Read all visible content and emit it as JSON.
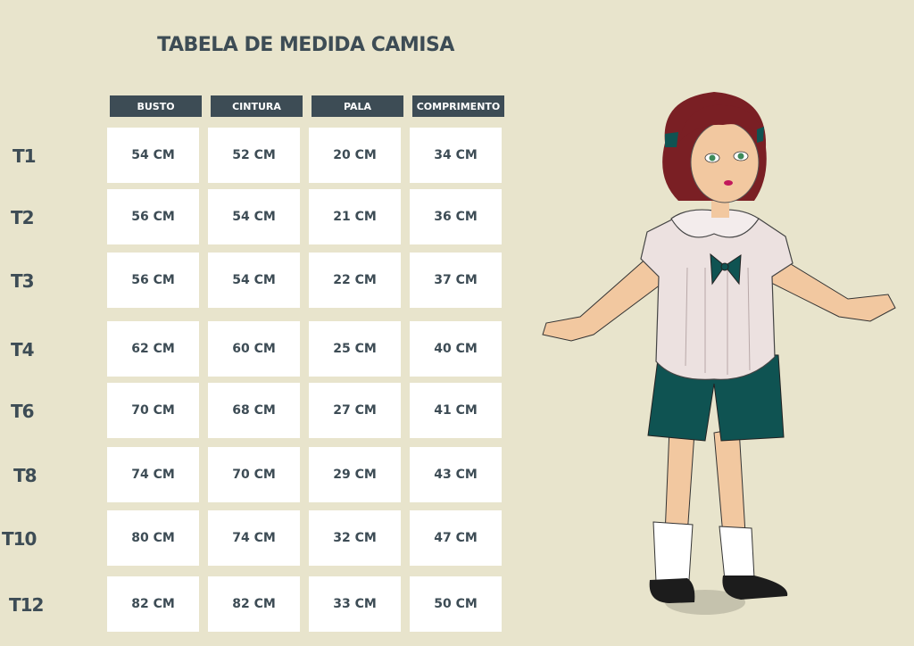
{
  "title": "TABELA DE MEDIDA CAMISA",
  "columns": [
    "BUSTO",
    "CINTURA",
    "PALA",
    "COMPRIMENTO"
  ],
  "rows": [
    {
      "size": "T1",
      "values": [
        "54 CM",
        "52 CM",
        "20 CM",
        "34  CM"
      ]
    },
    {
      "size": "T2",
      "values": [
        "56 CM",
        "54 CM",
        "21 CM",
        "36 CM"
      ]
    },
    {
      "size": "T3",
      "values": [
        "56 CM",
        "54 CM",
        "22 CM",
        "37 CM"
      ]
    },
    {
      "size": "T4",
      "values": [
        "62 CM",
        "60 CM",
        "25 CM",
        "40 CM"
      ]
    },
    {
      "size": "T6",
      "values": [
        "70 CM",
        "68 CM",
        "27 CM",
        "41 CM"
      ]
    },
    {
      "size": "T8",
      "values": [
        "74 CM",
        "70 CM",
        "29 CM",
        "43 CM"
      ]
    },
    {
      "size": "T10",
      "values": [
        "80 CM",
        "74 CM",
        "32 CM",
        "47 CM"
      ]
    },
    {
      "size": "T12",
      "values": [
        "82 CM",
        "82 CM",
        "33 CM",
        "50 CM"
      ]
    }
  ],
  "colors": {
    "background": "#e8e4cc",
    "header": "#3d4c55",
    "text": "#3d4c55",
    "cell": "#ffffff"
  }
}
